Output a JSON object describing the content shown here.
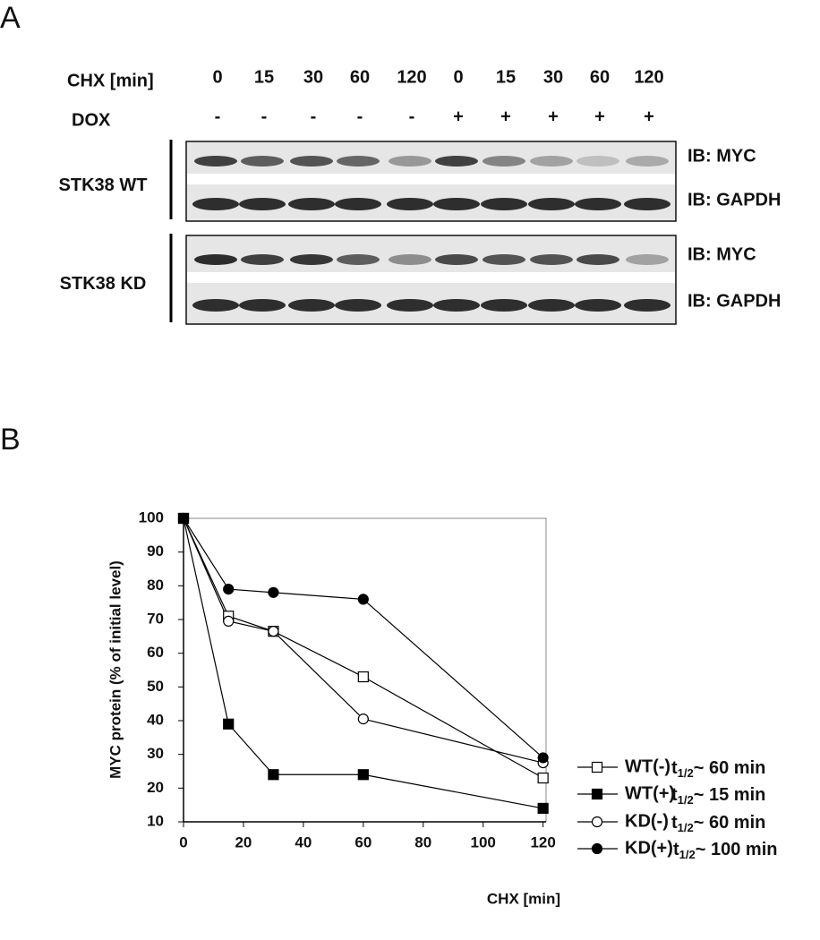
{
  "panel_a": {
    "label": "A",
    "chx_label": "CHX [min]",
    "chx_values": [
      "0",
      "15",
      "30",
      "60",
      "120",
      "0",
      "15",
      "30",
      "60",
      "120"
    ],
    "dox_label": "DOX",
    "dox_values": [
      "-",
      "-",
      "-",
      "-",
      "-",
      "+",
      "+",
      "+",
      "+",
      "+"
    ],
    "blots": [
      {
        "row_label": "STK38 WT",
        "bands": [
          "IB: MYC",
          "IB: GAPDH"
        ]
      },
      {
        "row_label": "STK38 KD",
        "bands": [
          "IB: MYC",
          "IB: GAPDH"
        ]
      }
    ]
  },
  "panel_b": {
    "label": "B"
  },
  "chart_data": {
    "type": "line",
    "x_label": "CHX [min]",
    "y_label": "MYC protein (% of initial level)",
    "x": [
      0,
      15,
      30,
      60,
      120
    ],
    "xlim": [
      0,
      121
    ],
    "xticks": [
      0,
      20,
      40,
      60,
      80,
      100,
      120
    ],
    "ylim": [
      10,
      100
    ],
    "yticks": [
      10,
      20,
      30,
      40,
      50,
      60,
      70,
      80,
      90,
      100
    ],
    "half_life_symbol": "t",
    "half_life_subscript": "1/2",
    "series": [
      {
        "name": "WT(-)",
        "color": "#000000",
        "marker": "square",
        "filled": false,
        "half_life": "~   60 min",
        "values": [
          100,
          71,
          66.5,
          53,
          23
        ]
      },
      {
        "name": "WT(+)",
        "color": "#000000",
        "marker": "square",
        "filled": true,
        "half_life": "~   15 min",
        "values": [
          100,
          39,
          24,
          24,
          14
        ]
      },
      {
        "name": "KD(-)",
        "color": "#000000",
        "marker": "circle",
        "filled": false,
        "half_life": "~   60 min",
        "values": [
          100,
          69.5,
          66.5,
          40.5,
          27.5
        ]
      },
      {
        "name": "KD(+)",
        "color": "#000000",
        "marker": "circle",
        "filled": true,
        "half_life": "~ 100 min",
        "values": [
          100,
          79,
          78,
          76,
          29
        ]
      }
    ]
  }
}
